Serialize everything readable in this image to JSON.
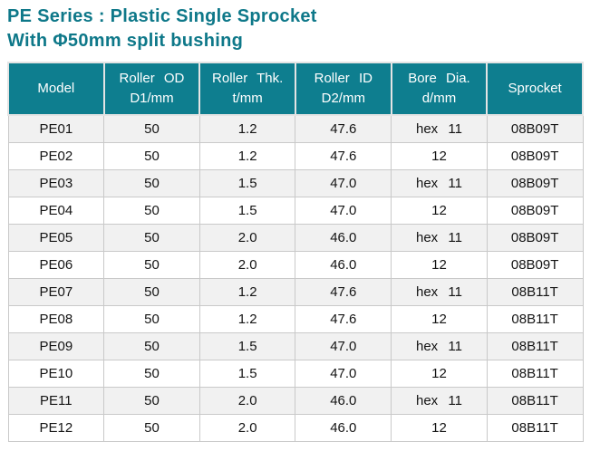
{
  "page": {
    "title_line1": "PE Series : Plastic Single Sprocket",
    "title_line2": "With Φ50mm split bushing"
  },
  "theme": {
    "header_bg": "#0e7e8f",
    "title_color": "#0e7889",
    "row_alt_bg": "#f1f1f1",
    "header_text_color": "#ffffff"
  },
  "table": {
    "columns": [
      {
        "line1": "Model",
        "line2": ""
      },
      {
        "line1": "Roller OD",
        "line2": "D1/mm"
      },
      {
        "line1": "Roller Thk.",
        "line2": "t/mm"
      },
      {
        "line1": "Roller ID",
        "line2": "D2/mm"
      },
      {
        "line1": "Bore Dia.",
        "line2": "d/mm"
      },
      {
        "line1": "Sprocket",
        "line2": ""
      }
    ],
    "rows": [
      [
        "PE01",
        "50",
        "1.2",
        "47.6",
        "hex 11",
        "08B09T"
      ],
      [
        "PE02",
        "50",
        "1.2",
        "47.6",
        "12",
        "08B09T"
      ],
      [
        "PE03",
        "50",
        "1.5",
        "47.0",
        "hex 11",
        "08B09T"
      ],
      [
        "PE04",
        "50",
        "1.5",
        "47.0",
        "12",
        "08B09T"
      ],
      [
        "PE05",
        "50",
        "2.0",
        "46.0",
        "hex 11",
        "08B09T"
      ],
      [
        "PE06",
        "50",
        "2.0",
        "46.0",
        "12",
        "08B09T"
      ],
      [
        "PE07",
        "50",
        "1.2",
        "47.6",
        "hex 11",
        "08B11T"
      ],
      [
        "PE08",
        "50",
        "1.2",
        "47.6",
        "12",
        "08B11T"
      ],
      [
        "PE09",
        "50",
        "1.5",
        "47.0",
        "hex 11",
        "08B11T"
      ],
      [
        "PE10",
        "50",
        "1.5",
        "47.0",
        "12",
        "08B11T"
      ],
      [
        "PE11",
        "50",
        "2.0",
        "46.0",
        "hex 11",
        "08B11T"
      ],
      [
        "PE12",
        "50",
        "2.0",
        "46.0",
        "12",
        "08B11T"
      ]
    ]
  }
}
